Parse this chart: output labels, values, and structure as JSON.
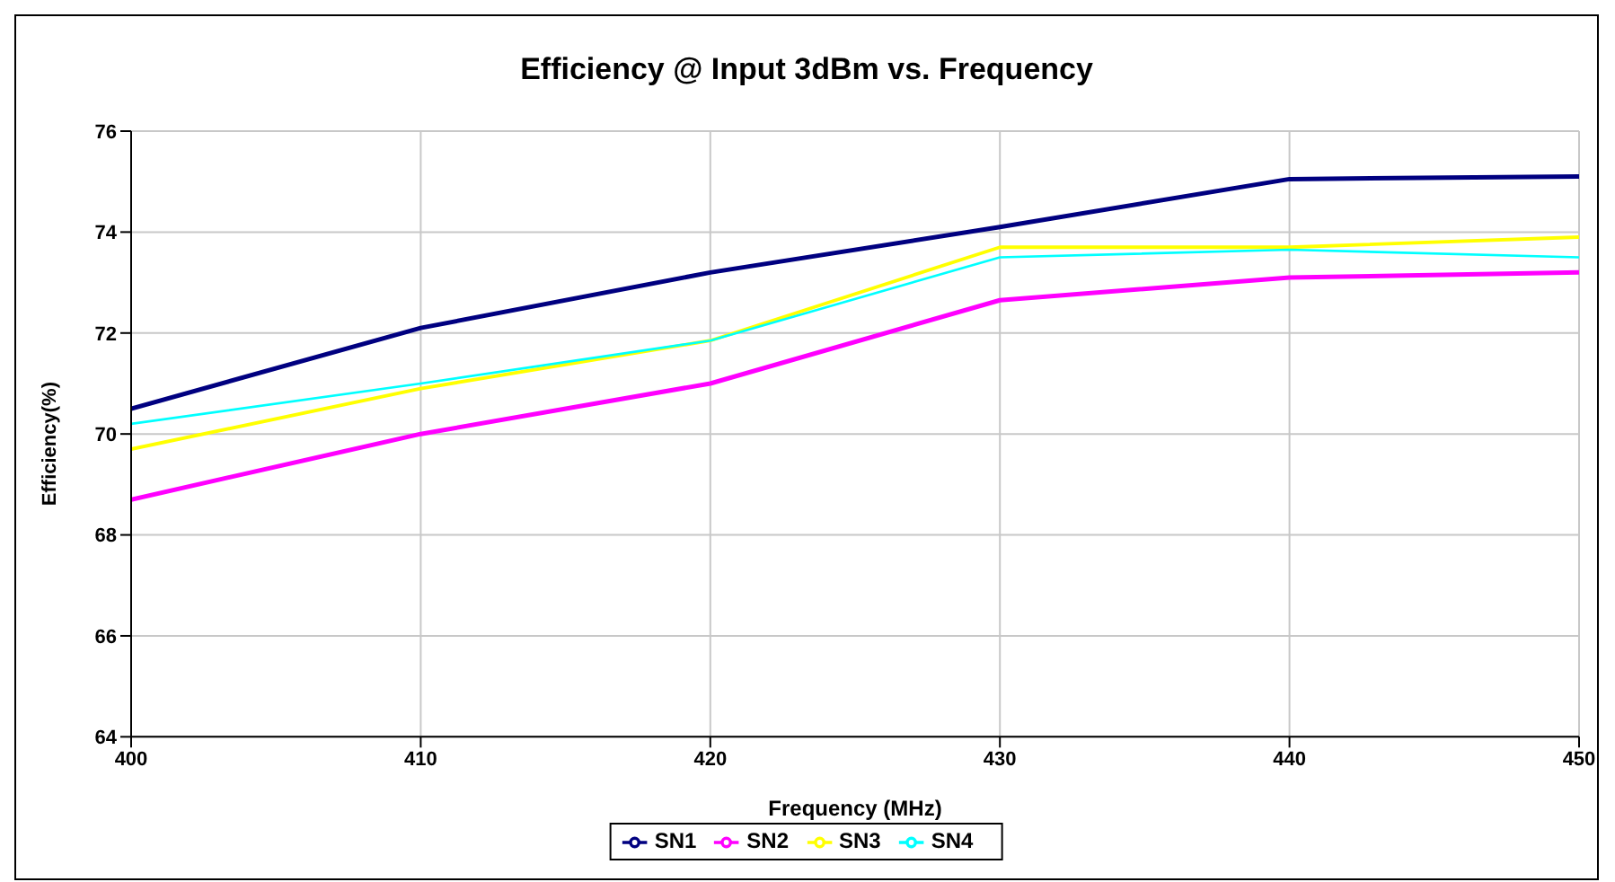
{
  "chart_data": {
    "type": "line",
    "title": "Efficiency @ Input 3dBm vs. Frequency",
    "xlabel": "Frequency (MHz)",
    "ylabel": "Efficiency(%)",
    "x": [
      400,
      410,
      420,
      430,
      440,
      450
    ],
    "series": [
      {
        "name": "SN1",
        "color": "#000080",
        "values": [
          70.5,
          72.1,
          73.2,
          74.1,
          75.05,
          75.1
        ]
      },
      {
        "name": "SN2",
        "color": "#ff00ff",
        "values": [
          68.7,
          70.0,
          71.0,
          72.65,
          73.1,
          73.2
        ]
      },
      {
        "name": "SN3",
        "color": "#ffff00",
        "values": [
          69.7,
          70.9,
          71.85,
          73.7,
          73.7,
          73.9
        ]
      },
      {
        "name": "SN4",
        "color": "#00ffff",
        "values": [
          70.2,
          71.0,
          71.85,
          73.5,
          73.65,
          73.5
        ]
      }
    ],
    "xlim": [
      400,
      450
    ],
    "xticks": [
      400,
      410,
      420,
      430,
      440,
      450
    ],
    "ylim": [
      64,
      76
    ],
    "yticks": [
      64,
      66,
      68,
      70,
      72,
      74,
      76
    ],
    "grid": true,
    "legend": "bottom",
    "marker": "none",
    "line_style": "solid"
  }
}
